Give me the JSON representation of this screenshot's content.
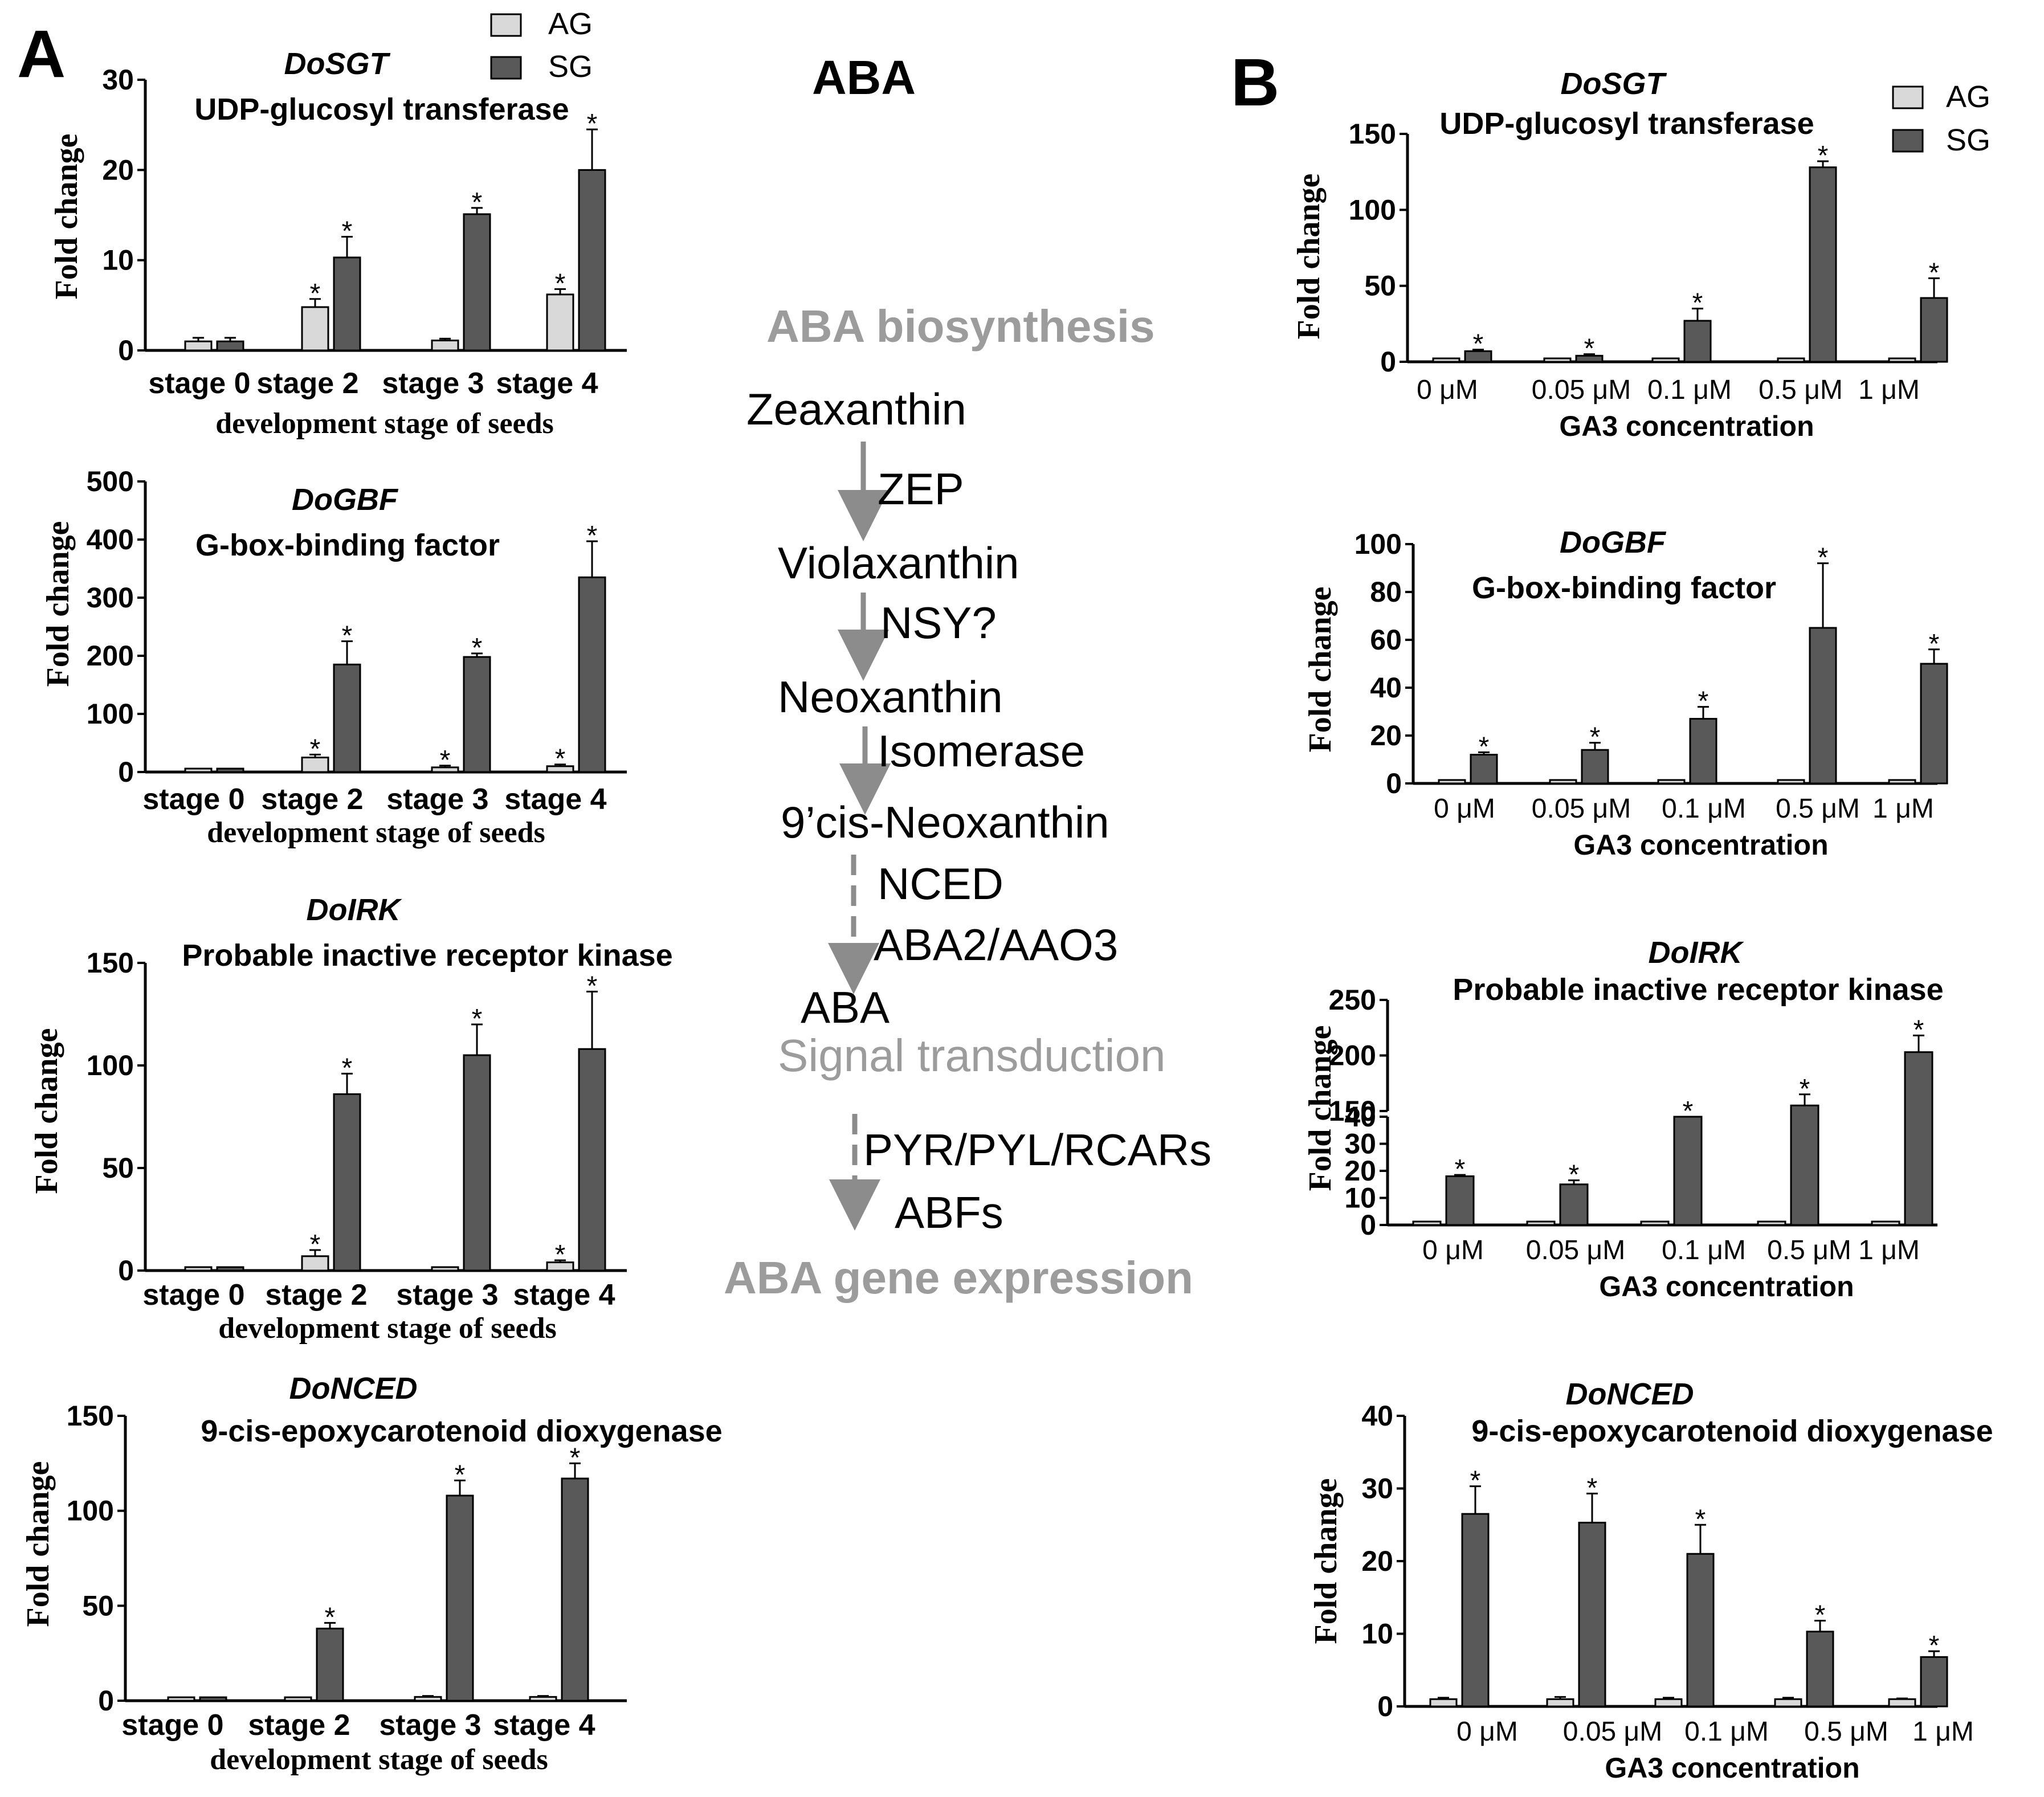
{
  "panel_labels": {
    "a": "A",
    "b": "B"
  },
  "legend": {
    "ag": "AG",
    "sg": "SG"
  },
  "colors": {
    "ag": "#d9d9d9",
    "sg": "#595959",
    "arrow": "#8c8c8c",
    "grey_text": "#9c9c9c"
  },
  "pathway": {
    "title": "ABA",
    "biosynthesis": "ABA biosynthesis",
    "nodes": [
      "Zeaxanthin",
      "Violaxanthin",
      "Neoxanthin",
      "9’cis-Neoxanthin",
      "ABA"
    ],
    "enzymes": [
      "ZEP",
      "NSY?",
      "Isomerase",
      "NCED",
      "ABA2/AAO3"
    ],
    "signal": "Signal transduction",
    "receptors": "PYR/PYL/RCARs",
    "abfs": "ABFs",
    "expression": "ABA gene expression"
  },
  "chart_data": [
    {
      "panel": "A",
      "type": "bar",
      "gene": "DoSGT",
      "title": "UDP-glucosyl transferase",
      "xlabel": "development stage of seeds",
      "ylabel": "Fold change",
      "categories": [
        "stage 0",
        "stage 2",
        "stage 3",
        "stage 4"
      ],
      "ylim": [
        0,
        30
      ],
      "yticks": [
        "0",
        "10",
        "20",
        "30"
      ],
      "ytick_values": [
        0,
        10,
        20,
        30
      ],
      "series": [
        {
          "name": "AG",
          "values": [
            1,
            4.8,
            1.1,
            6.2
          ],
          "errors": [
            0.4,
            0.9,
            0.2,
            0.6
          ],
          "sig": [
            false,
            true,
            false,
            true
          ]
        },
        {
          "name": "SG",
          "values": [
            1,
            10.3,
            15.1,
            20
          ],
          "errors": [
            0.4,
            2.3,
            0.7,
            4.5
          ],
          "sig": [
            false,
            true,
            true,
            true
          ]
        }
      ]
    },
    {
      "panel": "A",
      "type": "bar",
      "gene": "DoGBF",
      "title": "G-box-binding factor",
      "xlabel": "development stage of seeds",
      "ylabel": "Fold change",
      "categories": [
        "stage 0",
        "stage 2",
        "stage 3",
        "stage 4"
      ],
      "ylim": [
        0,
        500
      ],
      "yticks": [
        "0",
        "100",
        "200",
        "300",
        "400",
        "500"
      ],
      "ytick_values": [
        0,
        100,
        200,
        300,
        400,
        500
      ],
      "series": [
        {
          "name": "AG",
          "values": [
            1,
            25,
            8,
            10
          ],
          "errors": [
            0,
            5,
            3,
            3
          ],
          "sig": [
            false,
            true,
            true,
            true
          ]
        },
        {
          "name": "SG",
          "values": [
            1,
            185,
            198,
            335
          ],
          "errors": [
            0,
            40,
            6,
            62
          ],
          "sig": [
            false,
            true,
            true,
            true
          ]
        }
      ]
    },
    {
      "panel": "A",
      "type": "bar",
      "gene": "DoIRK",
      "title": "Probable inactive receptor kinase",
      "xlabel": "development stage of seeds",
      "ylabel": "Fold change",
      "categories": [
        "stage 0",
        "stage 2",
        "stage 3",
        "stage 4"
      ],
      "ylim": [
        0,
        150
      ],
      "yticks": [
        "0",
        "50",
        "100",
        "150"
      ],
      "ytick_values": [
        0,
        50,
        100,
        150
      ],
      "series": [
        {
          "name": "AG",
          "values": [
            1,
            7,
            1,
            4
          ],
          "errors": [
            0,
            3,
            0,
            1
          ],
          "sig": [
            false,
            true,
            false,
            true
          ]
        },
        {
          "name": "SG",
          "values": [
            1,
            86,
            105,
            108
          ],
          "errors": [
            0,
            10,
            15,
            28
          ],
          "sig": [
            false,
            true,
            true,
            true
          ]
        }
      ]
    },
    {
      "panel": "A",
      "type": "bar",
      "gene": "DoNCED",
      "title": "9-cis-epoxycarotenoid dioxygenase",
      "xlabel": "development stage of seeds",
      "ylabel": "Fold change",
      "categories": [
        "stage 0",
        "stage 2",
        "stage 3",
        "stage 4"
      ],
      "ylim": [
        0,
        150
      ],
      "yticks": [
        "0",
        "50",
        "100",
        "150"
      ],
      "ytick_values": [
        0,
        50,
        100,
        150
      ],
      "series": [
        {
          "name": "AG",
          "values": [
            1,
            1,
            2,
            2
          ],
          "errors": [
            0,
            0,
            0.5,
            0.5
          ],
          "sig": [
            false,
            false,
            false,
            false
          ]
        },
        {
          "name": "SG",
          "values": [
            1,
            38,
            108,
            117
          ],
          "errors": [
            0,
            3,
            8,
            8
          ],
          "sig": [
            false,
            true,
            true,
            true
          ]
        }
      ]
    },
    {
      "panel": "B",
      "type": "bar",
      "gene": "DoSGT",
      "title": "UDP-glucosyl transferase",
      "xlabel": "GA3 concentration",
      "ylabel": "Fold change",
      "categories": [
        "0 μM",
        "0.05 μM",
        "0.1 μM",
        "0.5 μM",
        "1 μM"
      ],
      "ylim": [
        0,
        150
      ],
      "yticks": [
        "0",
        "50",
        "100",
        "150"
      ],
      "ytick_values": [
        0,
        50,
        100,
        150
      ],
      "series": [
        {
          "name": "AG",
          "values": [
            1,
            1,
            1,
            1,
            1
          ],
          "errors": [
            0,
            0,
            0,
            0,
            0
          ],
          "sig": [
            false,
            false,
            false,
            false,
            false
          ]
        },
        {
          "name": "SG",
          "values": [
            7,
            4,
            27,
            128,
            42
          ],
          "errors": [
            1,
            1,
            8,
            4,
            13
          ],
          "sig": [
            true,
            true,
            true,
            true,
            true
          ]
        }
      ]
    },
    {
      "panel": "B",
      "type": "bar",
      "gene": "DoGBF",
      "title": "G-box-binding factor",
      "xlabel": "GA3 concentration",
      "ylabel": "Fold change",
      "categories": [
        "0 μM",
        "0.05 μM",
        "0.1 μM",
        "0.5 μM",
        "1 μM"
      ],
      "ylim": [
        0,
        100
      ],
      "yticks": [
        "0",
        "20",
        "40",
        "60",
        "80",
        "100"
      ],
      "ytick_values": [
        0,
        20,
        40,
        60,
        80,
        100
      ],
      "series": [
        {
          "name": "AG",
          "values": [
            1,
            1,
            1,
            1,
            1
          ],
          "errors": [
            0,
            0,
            0,
            0,
            0
          ],
          "sig": [
            false,
            false,
            false,
            false,
            false
          ]
        },
        {
          "name": "SG",
          "values": [
            12,
            14,
            27,
            65,
            50
          ],
          "errors": [
            1,
            3,
            5,
            27,
            6
          ],
          "sig": [
            true,
            true,
            true,
            true,
            true
          ]
        }
      ]
    },
    {
      "panel": "B",
      "type": "bar",
      "gene": "DoIRK",
      "title": "Probable inactive receptor kinase",
      "xlabel": "GA3 concentration",
      "ylabel": "Fold change",
      "categories": [
        "0 μM",
        "0.05 μM",
        "0.1 μM",
        "0.5 μM",
        "1 μM"
      ],
      "axis_break": {
        "lower": [
          0,
          40
        ],
        "upper": [
          150,
          250
        ]
      },
      "ylim": [
        0,
        250
      ],
      "yticks": [
        "0",
        "10",
        "20",
        "30",
        "40",
        "150",
        "200",
        "250"
      ],
      "ytick_values": [
        0,
        10,
        20,
        30,
        40,
        150,
        200,
        250
      ],
      "series": [
        {
          "name": "AG",
          "values": [
            1,
            1,
            1,
            1,
            1
          ],
          "errors": [
            0,
            0,
            0,
            0,
            0
          ],
          "sig": [
            false,
            false,
            false,
            false,
            false
          ]
        },
        {
          "name": "SG",
          "values": [
            18,
            15,
            40,
            155,
            203
          ],
          "errors": [
            0.5,
            1.5,
            5,
            10,
            15
          ],
          "sig": [
            true,
            true,
            true,
            true,
            true
          ]
        }
      ]
    },
    {
      "panel": "B",
      "type": "bar",
      "gene": "DoNCED",
      "title": "9-cis-epoxycarotenoid dioxygenase",
      "xlabel": "GA3 concentration",
      "ylabel": "Fold change",
      "categories": [
        "0 μM",
        "0.05 μM",
        "0.1 μM",
        "0.5 μM",
        "1 μM"
      ],
      "ylim": [
        0,
        40
      ],
      "yticks": [
        "0",
        "10",
        "20",
        "30",
        "40"
      ],
      "ytick_values": [
        0,
        10,
        20,
        30,
        40
      ],
      "series": [
        {
          "name": "AG",
          "values": [
            1,
            1,
            1,
            1,
            1
          ],
          "errors": [
            0.2,
            0.3,
            0.2,
            0.2,
            0.1
          ],
          "sig": [
            false,
            false,
            false,
            false,
            false
          ]
        },
        {
          "name": "SG",
          "values": [
            26.5,
            25.3,
            21,
            10.3,
            6.8
          ],
          "errors": [
            3.8,
            4,
            4,
            1.5,
            0.8
          ],
          "sig": [
            true,
            true,
            true,
            true,
            true
          ]
        }
      ]
    }
  ]
}
